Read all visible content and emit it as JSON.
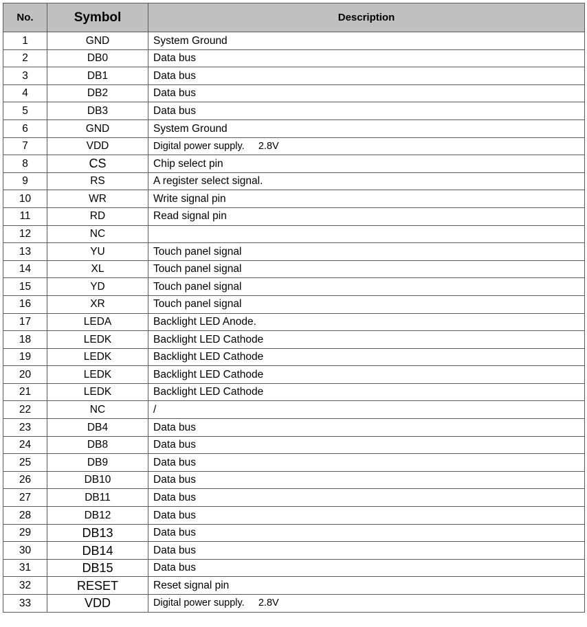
{
  "header": {
    "no": "No.",
    "symbol": "Symbol",
    "description": "Description"
  },
  "colors": {
    "header_bg": "#c0c0c0",
    "border": "#5a5a5a"
  },
  "rows": [
    {
      "no": "1",
      "symbol": "GND",
      "description": "System Ground"
    },
    {
      "no": "2",
      "symbol": "DB0",
      "description": "Data bus"
    },
    {
      "no": "3",
      "symbol": "DB1",
      "description": "Data bus"
    },
    {
      "no": "4",
      "symbol": "DB2",
      "description": "Data bus"
    },
    {
      "no": "5",
      "symbol": "DB3",
      "description": "Data bus"
    },
    {
      "no": "6",
      "symbol": "GND",
      "description": "System Ground"
    },
    {
      "no": "7",
      "symbol": "VDD",
      "description": "Digital power supply.     2.8V"
    },
    {
      "no": "8",
      "symbol": "CS",
      "description": "Chip select pin"
    },
    {
      "no": "9",
      "symbol": "RS",
      "description": "A register select signal."
    },
    {
      "no": "10",
      "symbol": "WR",
      "description": "Write signal pin"
    },
    {
      "no": "11",
      "symbol": "RD",
      "description": "Read signal pin"
    },
    {
      "no": "12",
      "symbol": "NC",
      "description": ""
    },
    {
      "no": "13",
      "symbol": "YU",
      "description": "Touch panel signal"
    },
    {
      "no": "14",
      "symbol": "XL",
      "description": "Touch panel signal"
    },
    {
      "no": "15",
      "symbol": "YD",
      "description": "Touch panel signal"
    },
    {
      "no": "16",
      "symbol": "XR",
      "description": "Touch panel signal"
    },
    {
      "no": "17",
      "symbol": "LEDA",
      "description": "Backlight LED Anode."
    },
    {
      "no": "18",
      "symbol": "LEDK",
      "description": "Backlight LED Cathode"
    },
    {
      "no": "19",
      "symbol": "LEDK",
      "description": "Backlight LED Cathode"
    },
    {
      "no": "20",
      "symbol": "LEDK",
      "description": "Backlight LED Cathode"
    },
    {
      "no": "21",
      "symbol": "LEDK",
      "description": "Backlight LED Cathode"
    },
    {
      "no": "22",
      "symbol": "NC",
      "description": "/"
    },
    {
      "no": "23",
      "symbol": "DB4",
      "description": "Data bus"
    },
    {
      "no": "24",
      "symbol": "DB8",
      "description": "Data bus"
    },
    {
      "no": "25",
      "symbol": "DB9",
      "description": "Data bus"
    },
    {
      "no": "26",
      "symbol": "DB10",
      "description": "Data bus"
    },
    {
      "no": "27",
      "symbol": "DB11",
      "description": "Data bus"
    },
    {
      "no": "28",
      "symbol": "DB12",
      "description": "Data bus"
    },
    {
      "no": "29",
      "symbol": "DB13",
      "description": "Data bus"
    },
    {
      "no": "30",
      "symbol": "DB14",
      "description": "Data bus"
    },
    {
      "no": "31",
      "symbol": "DB15",
      "description": "Data bus"
    },
    {
      "no": "32",
      "symbol": "RESET",
      "description": "Reset signal pin"
    },
    {
      "no": "33",
      "symbol": "VDD",
      "description": "Digital power supply.     2.8V"
    }
  ]
}
